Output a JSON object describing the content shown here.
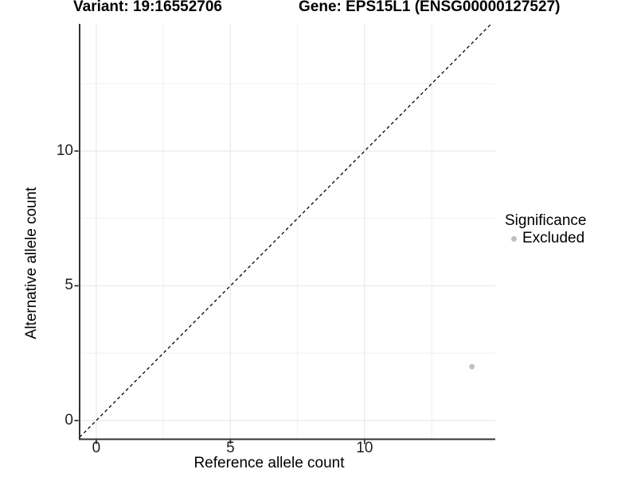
{
  "header": {
    "variant_title": "Variant: 19:16552706",
    "gene_title": "Gene: EPS15L1 (ENSG00000127527)"
  },
  "axes": {
    "x_title": "Reference allele count",
    "y_title": "Alternative allele count"
  },
  "legend": {
    "title": "Significance",
    "items": [
      {
        "label": "Excluded",
        "color": "#bebebe"
      }
    ]
  },
  "chart_data": {
    "type": "scatter",
    "title": "Variant: 19:16552706 | Gene: EPS15L1 (ENSG00000127527)",
    "xlabel": "Reference allele count",
    "ylabel": "Alternative allele count",
    "xlim": [
      -0.62,
      14.87
    ],
    "ylim": [
      -0.68,
      14.72
    ],
    "x_major_ticks": [
      0,
      5,
      10
    ],
    "y_major_ticks": [
      0,
      5,
      10
    ],
    "x_minor_ticks": [
      2.5,
      7.5,
      12.5
    ],
    "y_minor_ticks": [
      2.5,
      7.5,
      12.5
    ],
    "grid": {
      "on": true,
      "major_color": "#eaeaea",
      "minor_color": "#efefef"
    },
    "axis_color": "#333333",
    "reference_line": {
      "type": "identity",
      "slope": 1,
      "intercept": 0,
      "style": "dashed",
      "color": "#000000"
    },
    "series": [
      {
        "name": "Excluded",
        "color": "#c1c1c1",
        "point_radius": 3.4,
        "points": [
          [
            14,
            2
          ]
        ]
      }
    ],
    "legend_position": "right"
  }
}
